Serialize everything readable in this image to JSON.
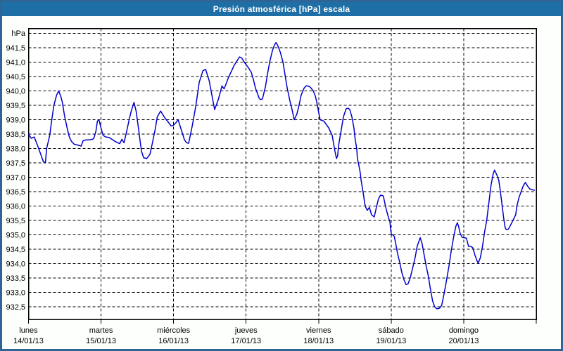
{
  "window": {
    "title": "Presión atmosférica [hPa] escala"
  },
  "theme": {
    "window_border_color": "#2e6496",
    "title_bar_color": "#1e6fa6",
    "title_text_color": "#ffffff",
    "background_color": "#fcfffc",
    "plot_background_color": "#ffffff",
    "grid_color": "#000000",
    "line_color": "#0000cc"
  },
  "chart_data": {
    "type": "line",
    "title": "Presión atmosférica [hPa] escala",
    "xlabel": "",
    "ylabel": "hPa",
    "grid": "dashed",
    "legend_position": "none",
    "y_axis": {
      "unit_label": "hPa",
      "min": 932.5,
      "max": 942.0,
      "step": 0.5,
      "top_gridline_value": 942.0,
      "tick_labels": [
        "941,5",
        "941,0",
        "940,5",
        "940,0",
        "939,5",
        "939,0",
        "938,5",
        "938,0",
        "937,5",
        "937,0",
        "936,5",
        "936,0",
        "935,5",
        "935,0",
        "934,5",
        "934,0",
        "933,5",
        "933,0",
        "932,5"
      ],
      "tick_values": [
        941.5,
        941.0,
        940.5,
        940.0,
        939.5,
        939.0,
        938.5,
        938.0,
        937.5,
        937.0,
        936.5,
        936.0,
        935.5,
        935.0,
        934.5,
        934.0,
        933.5,
        933.0,
        932.5
      ]
    },
    "x_axis": {
      "hours_total": 168,
      "hours_per_day": 24,
      "days": [
        {
          "name": "lunes",
          "date": "14/01/13"
        },
        {
          "name": "martes",
          "date": "15/01/13"
        },
        {
          "name": "miércoles",
          "date": "16/01/13"
        },
        {
          "name": "jueves",
          "date": "17/01/13"
        },
        {
          "name": "viernes",
          "date": "18/01/13"
        },
        {
          "name": "sábado",
          "date": "19/01/13"
        },
        {
          "name": "domingo",
          "date": "20/01/13"
        }
      ]
    },
    "series": [
      {
        "name": "Presión atmosférica",
        "color": "#0000cc",
        "points": [
          [
            0.0,
            938.5
          ],
          [
            0.9,
            938.35
          ],
          [
            1.9,
            938.4
          ],
          [
            3.0,
            938.1
          ],
          [
            3.7,
            937.9
          ],
          [
            4.9,
            937.55
          ],
          [
            5.6,
            937.5
          ],
          [
            6.0,
            938.0
          ],
          [
            7.0,
            938.45
          ],
          [
            7.7,
            939.0
          ],
          [
            8.4,
            939.5
          ],
          [
            9.3,
            939.85
          ],
          [
            10.0,
            940.0
          ],
          [
            10.7,
            939.8
          ],
          [
            11.2,
            939.6
          ],
          [
            11.9,
            939.15
          ],
          [
            12.8,
            938.7
          ],
          [
            13.5,
            938.4
          ],
          [
            14.2,
            938.25
          ],
          [
            15.1,
            938.15
          ],
          [
            16.3,
            938.12
          ],
          [
            17.4,
            938.08
          ],
          [
            18.1,
            938.27
          ],
          [
            19.1,
            938.3
          ],
          [
            20.2,
            938.3
          ],
          [
            21.2,
            938.32
          ],
          [
            21.6,
            938.35
          ],
          [
            22.3,
            938.6
          ],
          [
            22.8,
            938.95
          ],
          [
            23.3,
            939.0
          ],
          [
            24.0,
            938.7
          ],
          [
            24.7,
            938.45
          ],
          [
            25.6,
            938.4
          ],
          [
            26.7,
            938.38
          ],
          [
            27.9,
            938.3
          ],
          [
            28.6,
            938.25
          ],
          [
            29.5,
            938.2
          ],
          [
            30.2,
            938.17
          ],
          [
            30.9,
            938.32
          ],
          [
            31.6,
            938.2
          ],
          [
            32.6,
            938.65
          ],
          [
            33.3,
            939.0
          ],
          [
            34.0,
            939.3
          ],
          [
            34.9,
            939.6
          ],
          [
            35.6,
            939.3
          ],
          [
            36.0,
            939.0
          ],
          [
            36.5,
            938.6
          ],
          [
            37.0,
            938.2
          ],
          [
            37.4,
            937.9
          ],
          [
            38.1,
            937.68
          ],
          [
            39.1,
            937.65
          ],
          [
            40.2,
            937.8
          ],
          [
            40.9,
            938.15
          ],
          [
            41.9,
            938.65
          ],
          [
            42.6,
            939.1
          ],
          [
            43.7,
            939.3
          ],
          [
            44.9,
            939.1
          ],
          [
            45.6,
            939.0
          ],
          [
            46.5,
            938.88
          ],
          [
            47.2,
            938.78
          ],
          [
            47.9,
            938.8
          ],
          [
            48.8,
            938.9
          ],
          [
            49.5,
            939.0
          ],
          [
            50.7,
            938.6
          ],
          [
            51.6,
            938.3
          ],
          [
            52.3,
            938.2
          ],
          [
            53.0,
            938.18
          ],
          [
            54.2,
            938.8
          ],
          [
            55.4,
            939.5
          ],
          [
            56.5,
            940.3
          ],
          [
            57.7,
            940.7
          ],
          [
            58.6,
            940.75
          ],
          [
            59.8,
            940.35
          ],
          [
            60.5,
            939.95
          ],
          [
            61.6,
            939.35
          ],
          [
            62.8,
            939.7
          ],
          [
            64.0,
            940.17
          ],
          [
            64.7,
            940.07
          ],
          [
            65.1,
            940.17
          ],
          [
            66.1,
            940.45
          ],
          [
            68.1,
            940.9
          ],
          [
            69.8,
            941.18
          ],
          [
            70.5,
            941.15
          ],
          [
            71.4,
            941.0
          ],
          [
            72.1,
            940.9
          ],
          [
            72.8,
            940.8
          ],
          [
            73.7,
            940.65
          ],
          [
            74.4,
            940.4
          ],
          [
            75.1,
            940.1
          ],
          [
            75.6,
            939.95
          ],
          [
            76.3,
            939.75
          ],
          [
            76.7,
            939.7
          ],
          [
            77.4,
            939.72
          ],
          [
            78.4,
            940.15
          ],
          [
            79.1,
            940.6
          ],
          [
            79.8,
            941.0
          ],
          [
            80.7,
            941.4
          ],
          [
            81.4,
            941.6
          ],
          [
            81.9,
            941.68
          ],
          [
            82.6,
            941.55
          ],
          [
            83.3,
            941.35
          ],
          [
            84.2,
            941.0
          ],
          [
            84.9,
            940.55
          ],
          [
            85.6,
            940.1
          ],
          [
            86.5,
            939.65
          ],
          [
            87.2,
            939.35
          ],
          [
            87.9,
            939.0
          ],
          [
            88.8,
            939.2
          ],
          [
            89.5,
            939.5
          ],
          [
            90.2,
            939.85
          ],
          [
            91.2,
            940.1
          ],
          [
            91.9,
            940.18
          ],
          [
            93.0,
            940.15
          ],
          [
            93.5,
            940.1
          ],
          [
            94.2,
            940.0
          ],
          [
            94.9,
            939.82
          ],
          [
            95.3,
            939.65
          ],
          [
            96.0,
            939.26
          ],
          [
            96.5,
            939.0
          ],
          [
            97.2,
            938.97
          ],
          [
            97.7,
            938.95
          ],
          [
            98.4,
            938.85
          ],
          [
            99.3,
            938.72
          ],
          [
            100.0,
            938.56
          ],
          [
            100.5,
            938.45
          ],
          [
            100.9,
            938.2
          ],
          [
            101.4,
            937.9
          ],
          [
            101.9,
            937.65
          ],
          [
            102.3,
            937.75
          ],
          [
            102.6,
            938.1
          ],
          [
            103.5,
            938.66
          ],
          [
            104.2,
            939.1
          ],
          [
            105.1,
            939.38
          ],
          [
            105.8,
            939.4
          ],
          [
            106.3,
            939.35
          ],
          [
            107.0,
            939.1
          ],
          [
            107.7,
            938.7
          ],
          [
            108.1,
            938.3
          ],
          [
            108.6,
            938.0
          ],
          [
            108.8,
            937.66
          ],
          [
            109.3,
            937.42
          ],
          [
            109.8,
            937.13
          ],
          [
            110.0,
            936.93
          ],
          [
            110.5,
            936.6
          ],
          [
            110.9,
            936.35
          ],
          [
            111.2,
            936.1
          ],
          [
            111.6,
            935.95
          ],
          [
            112.1,
            935.85
          ],
          [
            112.8,
            935.95
          ],
          [
            113.5,
            935.7
          ],
          [
            114.4,
            935.62
          ],
          [
            115.1,
            935.95
          ],
          [
            115.8,
            936.25
          ],
          [
            116.5,
            936.38
          ],
          [
            117.4,
            936.35
          ],
          [
            118.1,
            936.0
          ],
          [
            118.6,
            935.8
          ],
          [
            119.1,
            935.6
          ],
          [
            119.6,
            935.45
          ],
          [
            119.8,
            935.2
          ],
          [
            120.1,
            935.0
          ],
          [
            120.5,
            935.0
          ],
          [
            121.0,
            934.95
          ],
          [
            121.4,
            934.75
          ],
          [
            122.1,
            934.35
          ],
          [
            122.8,
            934.05
          ],
          [
            123.5,
            933.7
          ],
          [
            124.2,
            933.45
          ],
          [
            124.9,
            933.27
          ],
          [
            125.6,
            933.3
          ],
          [
            126.3,
            933.5
          ],
          [
            127.0,
            933.8
          ],
          [
            127.9,
            934.2
          ],
          [
            128.6,
            934.6
          ],
          [
            129.6,
            934.9
          ],
          [
            130.2,
            934.7
          ],
          [
            130.9,
            934.3
          ],
          [
            131.6,
            933.9
          ],
          [
            132.3,
            933.56
          ],
          [
            133.0,
            933.1
          ],
          [
            133.7,
            932.7
          ],
          [
            134.4,
            932.5
          ],
          [
            135.1,
            932.43
          ],
          [
            136.0,
            932.45
          ],
          [
            136.7,
            932.55
          ],
          [
            137.4,
            932.9
          ],
          [
            138.1,
            933.3
          ],
          [
            139.1,
            933.9
          ],
          [
            139.8,
            934.4
          ],
          [
            140.7,
            934.95
          ],
          [
            141.4,
            935.3
          ],
          [
            141.9,
            935.42
          ],
          [
            142.3,
            935.3
          ],
          [
            142.8,
            935.05
          ],
          [
            143.5,
            934.91
          ],
          [
            144.2,
            934.9
          ],
          [
            144.9,
            934.88
          ],
          [
            145.6,
            934.6
          ],
          [
            146.3,
            934.6
          ],
          [
            147.0,
            934.55
          ],
          [
            147.7,
            934.3
          ],
          [
            148.4,
            934.1
          ],
          [
            148.8,
            934.02
          ],
          [
            149.5,
            934.2
          ],
          [
            150.2,
            934.6
          ],
          [
            150.9,
            935.1
          ],
          [
            151.6,
            935.5
          ],
          [
            152.3,
            936.1
          ],
          [
            153.0,
            936.7
          ],
          [
            153.7,
            937.1
          ],
          [
            154.2,
            937.25
          ],
          [
            154.9,
            937.1
          ],
          [
            155.6,
            936.9
          ],
          [
            156.0,
            936.6
          ],
          [
            156.5,
            936.2
          ],
          [
            157.2,
            935.6
          ],
          [
            157.7,
            935.25
          ],
          [
            158.1,
            935.18
          ],
          [
            158.8,
            935.2
          ],
          [
            159.8,
            935.4
          ],
          [
            160.5,
            935.55
          ],
          [
            161.2,
            935.7
          ],
          [
            161.6,
            936.0
          ],
          [
            162.3,
            936.3
          ],
          [
            163.0,
            936.5
          ],
          [
            163.7,
            936.7
          ],
          [
            164.4,
            936.82
          ],
          [
            165.1,
            936.7
          ],
          [
            165.8,
            936.6
          ],
          [
            166.5,
            936.57
          ],
          [
            167.4,
            936.55
          ]
        ]
      }
    ]
  }
}
